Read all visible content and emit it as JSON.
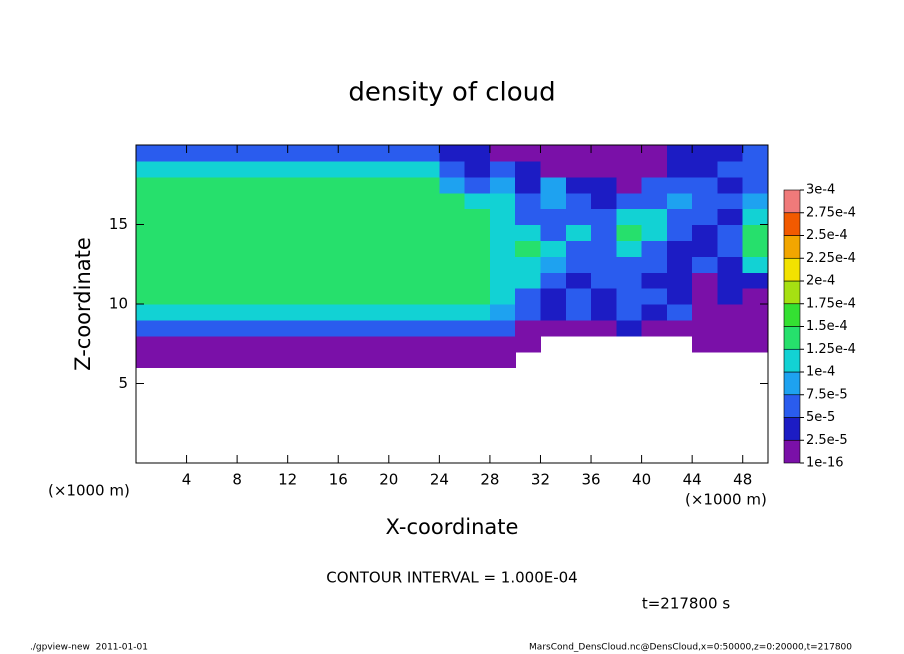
{
  "chart_data": {
    "type": "heatmap",
    "title": "density of cloud",
    "xlabel": "X-coordinate",
    "ylabel": "Z-coordinate",
    "xunit": "(×1000 m)",
    "yunit": "(×1000 m)",
    "xlim": [
      0,
      50
    ],
    "ylim": [
      0,
      20
    ],
    "xticks": [
      4,
      8,
      12,
      16,
      20,
      24,
      28,
      32,
      36,
      40,
      44,
      48
    ],
    "yticks": [
      5,
      10,
      15
    ],
    "x": [
      1,
      3,
      5,
      7,
      9,
      11,
      13,
      15,
      17,
      19,
      21,
      23,
      25,
      27,
      29,
      31,
      33,
      35,
      37,
      39,
      41,
      43,
      45,
      47,
      49
    ],
    "y": [
      0.5,
      1.5,
      2.5,
      3.5,
      4.5,
      5.5,
      6.5,
      7.5,
      8.5,
      9.5,
      10.5,
      11.5,
      12.5,
      13.5,
      14.5,
      15.5,
      16.5,
      17.5,
      18.5,
      19.5
    ],
    "z": [
      [
        null,
        null,
        null,
        null,
        null,
        null,
        null,
        null,
        null,
        null,
        null,
        null,
        null,
        null,
        null,
        null,
        null,
        null,
        null,
        null,
        null,
        null,
        null,
        null,
        null
      ],
      [
        null,
        null,
        null,
        null,
        null,
        null,
        null,
        null,
        null,
        null,
        null,
        null,
        null,
        null,
        null,
        null,
        null,
        null,
        null,
        null,
        null,
        null,
        null,
        null,
        null
      ],
      [
        null,
        null,
        null,
        null,
        null,
        null,
        null,
        null,
        null,
        null,
        null,
        null,
        null,
        null,
        null,
        null,
        null,
        null,
        null,
        null,
        null,
        null,
        null,
        null,
        null
      ],
      [
        null,
        null,
        null,
        null,
        null,
        null,
        null,
        null,
        null,
        null,
        null,
        null,
        null,
        null,
        null,
        null,
        null,
        null,
        null,
        null,
        null,
        null,
        null,
        null,
        null
      ],
      [
        null,
        null,
        null,
        null,
        null,
        null,
        null,
        null,
        null,
        null,
        null,
        null,
        null,
        null,
        null,
        null,
        null,
        null,
        null,
        null,
        null,
        null,
        null,
        null,
        null
      ],
      [
        null,
        null,
        null,
        null,
        null,
        null,
        null,
        null,
        null,
        null,
        null,
        null,
        null,
        null,
        null,
        null,
        null,
        null,
        null,
        null,
        null,
        null,
        null,
        null,
        null
      ],
      [
        1e-05,
        1e-05,
        1e-05,
        1e-05,
        1e-05,
        1e-05,
        1e-05,
        1e-05,
        1e-05,
        1e-05,
        1e-05,
        1e-05,
        1e-05,
        1e-05,
        1e-05,
        null,
        null,
        null,
        null,
        null,
        null,
        null,
        null,
        null,
        null
      ],
      [
        2e-05,
        2e-05,
        2e-05,
        2e-05,
        2e-05,
        2e-05,
        2e-05,
        2e-05,
        2e-05,
        2e-05,
        2e-05,
        2e-05,
        2e-05,
        2e-05,
        2e-05,
        1e-05,
        null,
        null,
        null,
        null,
        null,
        null,
        1e-05,
        1e-05,
        1e-05
      ],
      [
        5e-05,
        5e-05,
        5e-05,
        5e-05,
        5e-05,
        5e-05,
        5e-05,
        5e-05,
        5e-05,
        5e-05,
        5e-05,
        5e-05,
        5e-05,
        5e-05,
        5e-05,
        1e-05,
        1e-05,
        2e-05,
        1e-05,
        3e-05,
        2e-05,
        1e-05,
        1e-05,
        1e-05,
        1e-05
      ],
      [
        0.00011,
        0.00011,
        0.00011,
        0.00011,
        0.00011,
        0.00011,
        0.00011,
        0.00011,
        0.00011,
        0.00011,
        0.00011,
        0.00011,
        0.00011,
        0.00011,
        8e-05,
        5e-05,
        4e-05,
        6e-05,
        3e-05,
        5e-05,
        4e-05,
        6e-05,
        1e-05,
        1e-05,
        2e-05
      ],
      [
        0.00013,
        0.00013,
        0.00013,
        0.00013,
        0.00013,
        0.00013,
        0.00013,
        0.00013,
        0.00013,
        0.00013,
        0.00013,
        0.00013,
        0.00013,
        0.00013,
        0.0001,
        6e-05,
        4e-05,
        5e-05,
        3e-05,
        6e-05,
        5e-05,
        4e-05,
        1e-05,
        3e-05,
        1e-05
      ],
      [
        0.00013,
        0.00013,
        0.00013,
        0.00013,
        0.00013,
        0.00013,
        0.00013,
        0.00013,
        0.00013,
        0.00013,
        0.00013,
        0.00013,
        0.00013,
        0.00013,
        0.0001,
        0.00011,
        6e-05,
        4e-05,
        5e-05,
        6e-05,
        4e-05,
        3e-05,
        1e-05,
        4e-05,
        3e-05
      ],
      [
        0.00013,
        0.00013,
        0.00013,
        0.00013,
        0.00013,
        0.00013,
        0.00013,
        0.00013,
        0.00013,
        0.00013,
        0.00013,
        0.00013,
        0.00013,
        0.00013,
        0.0001,
        0.00012,
        8e-05,
        6e-05,
        5e-05,
        7e-05,
        5e-05,
        3e-05,
        5e-05,
        3e-05,
        0.00011
      ],
      [
        0.00013,
        0.00013,
        0.00013,
        0.00013,
        0.00013,
        0.00013,
        0.00013,
        0.00013,
        0.00013,
        0.00013,
        0.00013,
        0.00013,
        0.00013,
        0.00013,
        0.0001,
        0.00013,
        0.00011,
        6e-05,
        5e-05,
        0.00012,
        6e-05,
        4e-05,
        3e-05,
        6e-05,
        0.00013
      ],
      [
        0.00013,
        0.00013,
        0.00013,
        0.00013,
        0.00013,
        0.00013,
        0.00013,
        0.00013,
        0.00013,
        0.00013,
        0.00013,
        0.00013,
        0.00013,
        0.00013,
        0.0001,
        0.00012,
        7e-05,
        0.00012,
        6e-05,
        0.00013,
        0.00012,
        5e-05,
        4e-05,
        7e-05,
        0.00013
      ],
      [
        0.00013,
        0.00013,
        0.00013,
        0.00013,
        0.00013,
        0.00013,
        0.00013,
        0.00013,
        0.00013,
        0.00013,
        0.00013,
        0.00013,
        0.00013,
        0.00013,
        0.0001,
        7e-05,
        5e-05,
        6e-05,
        5e-05,
        0.00011,
        0.00012,
        6e-05,
        7e-05,
        4e-05,
        0.00012
      ],
      [
        0.00013,
        0.00013,
        0.00013,
        0.00013,
        0.00013,
        0.00013,
        0.00013,
        0.00013,
        0.00013,
        0.00013,
        0.00013,
        0.00013,
        0.00013,
        0.0001,
        0.00011,
        6e-05,
        8e-05,
        5e-05,
        4e-05,
        6e-05,
        5e-05,
        8e-05,
        6e-05,
        5e-05,
        8e-05
      ],
      [
        0.00013,
        0.00013,
        0.00013,
        0.00013,
        0.00013,
        0.00013,
        0.00013,
        0.00013,
        0.00013,
        0.00013,
        0.00013,
        0.00013,
        8e-05,
        6e-05,
        9e-05,
        4e-05,
        9e-05,
        4e-05,
        3e-05,
        2e-05,
        5e-05,
        6e-05,
        5e-05,
        4e-05,
        5e-05
      ],
      [
        0.00012,
        0.00012,
        0.00012,
        0.00012,
        0.00012,
        0.00012,
        0.00012,
        0.00012,
        0.00012,
        0.00012,
        0.00012,
        0.00012,
        7e-05,
        4e-05,
        5e-05,
        3e-05,
        1e-05,
        1e-05,
        2e-05,
        1e-05,
        1e-05,
        3e-05,
        4e-05,
        5e-05,
        6e-05
      ],
      [
        6e-05,
        6e-05,
        6e-05,
        6e-05,
        6e-05,
        6e-05,
        6e-05,
        6e-05,
        6e-05,
        6e-05,
        6e-05,
        6e-05,
        3e-05,
        3e-05,
        2e-05,
        1e-05,
        1e-05,
        1e-05,
        1e-05,
        1e-05,
        2e-05,
        3e-05,
        3e-05,
        4e-05,
        5e-05
      ]
    ],
    "colorbar": {
      "ticks": [
        {
          "value": 1e-16,
          "label": "1e-16"
        },
        {
          "value": 2.5e-05,
          "label": "2.5e-5"
        },
        {
          "value": 5e-05,
          "label": "5e-5"
        },
        {
          "value": 7.5e-05,
          "label": "7.5e-5"
        },
        {
          "value": 0.0001,
          "label": "1e-4"
        },
        {
          "value": 0.000125,
          "label": "1.25e-4"
        },
        {
          "value": 0.00015,
          "label": "1.5e-4"
        },
        {
          "value": 0.000175,
          "label": "1.75e-4"
        },
        {
          "value": 0.0002,
          "label": "2e-4"
        },
        {
          "value": 0.000225,
          "label": "2.25e-4"
        },
        {
          "value": 0.00025,
          "label": "2.5e-4"
        },
        {
          "value": 0.000275,
          "label": "2.75e-4"
        },
        {
          "value": 0.0003,
          "label": "3e-4"
        }
      ],
      "colors": [
        "#7a10a8",
        "#1c1cc4",
        "#2a5cee",
        "#1ea2f0",
        "#12d2d4",
        "#26e06c",
        "#34e032",
        "#a6e012",
        "#f2e200",
        "#f2a600",
        "#f25a00",
        "#f07a7a"
      ]
    },
    "contour_interval": "CONTOUR INTERVAL = 1.000E-04",
    "time": "t=217800 s",
    "footer_left": "./gpview-new  2011-01-01",
    "footer_right": "MarsCond_DensCloud.nc@DensCloud,x=0:50000,z=0:20000,t=217800"
  }
}
